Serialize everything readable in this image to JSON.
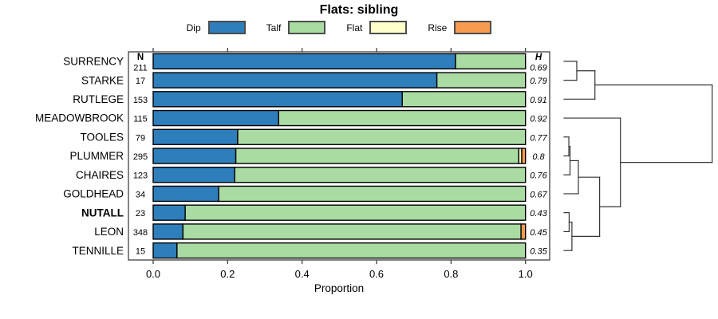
{
  "chart_data": {
    "type": "bar",
    "variant": "horizontal-stacked-proportion-with-dendrogram",
    "title": "Flats: sibling",
    "xlabel": "Proportion",
    "xlim": [
      0,
      1
    ],
    "x_ticks": [
      "0.0",
      "0.2",
      "0.4",
      "0.6",
      "0.8",
      "1.0"
    ],
    "grid": false,
    "legend_position": "top",
    "n_column_header": "N",
    "h_column_header": "H",
    "categories": [
      "SURRENCY",
      "STARKE",
      "RUTLEGE",
      "MEADOWBROOK",
      "TOOLES",
      "PLUMMER",
      "CHAIRES",
      "GOLDHEAD",
      "NUTALL",
      "LEON",
      "TENNILLE"
    ],
    "bold_categories": [
      "NUTALL"
    ],
    "n_values": [
      "211",
      "17",
      "153",
      "115",
      "79",
      "295",
      "123",
      "34",
      "23",
      "348",
      "15"
    ],
    "h_values": [
      "0.69",
      "0.79",
      "0.91",
      "0.92",
      "0.77",
      "0.8",
      "0.76",
      "0.67",
      "0.43",
      "0.45",
      "0.35"
    ],
    "series": [
      {
        "name": "Dip",
        "values": [
          0.812,
          0.762,
          0.669,
          0.337,
          0.227,
          0.222,
          0.219,
          0.176,
          0.086,
          0.08,
          0.064
        ]
      },
      {
        "name": "Talf",
        "values": [
          0.188,
          0.238,
          0.331,
          0.663,
          0.773,
          0.76,
          0.781,
          0.824,
          0.914,
          0.908,
          0.936
        ]
      },
      {
        "name": "Flat",
        "values": [
          0,
          0,
          0,
          0,
          0,
          0.008,
          0,
          0,
          0,
          0,
          0
        ]
      },
      {
        "name": "Rise",
        "values": [
          0,
          0,
          0,
          0,
          0,
          0.01,
          0,
          0,
          0,
          0.012,
          0
        ]
      }
    ],
    "dendrogram": {
      "orientation": "right",
      "merges": [
        {
          "id": "m1",
          "a": 4,
          "b": 5,
          "d": 0.022
        },
        {
          "id": "m2",
          "a": 8,
          "b": 9,
          "d": 0.024
        },
        {
          "id": "m3",
          "a": "m1",
          "b": 6,
          "d": 0.03
        },
        {
          "id": "m4",
          "a": "m2",
          "b": 10,
          "d": 0.043
        },
        {
          "id": "m5",
          "a": 0,
          "b": 1,
          "d": 0.076
        },
        {
          "id": "m6",
          "a": "m3",
          "b": 7,
          "d": 0.087
        },
        {
          "id": "m7",
          "a": "m5",
          "b": 2,
          "d": 0.2
        },
        {
          "id": "m8",
          "a": "m6",
          "b": "m4",
          "d": 0.232
        },
        {
          "id": "m9",
          "a": 3,
          "b": "m8",
          "d": 0.374
        },
        {
          "id": "m10",
          "a": "m7",
          "b": "m9",
          "d": 1.0
        }
      ]
    }
  },
  "legend": {
    "items": [
      {
        "label": "Dip",
        "color": "#2e7ebc"
      },
      {
        "label": "Talf",
        "color": "#a9dba3"
      },
      {
        "label": "Flat",
        "color": "#ffffcc"
      },
      {
        "label": "Rise",
        "color": "#f79b51"
      }
    ]
  },
  "colors": {
    "bar_border": "#000000",
    "frame": "#333333",
    "dendrogram_line": "#333333",
    "text": "#000000"
  }
}
